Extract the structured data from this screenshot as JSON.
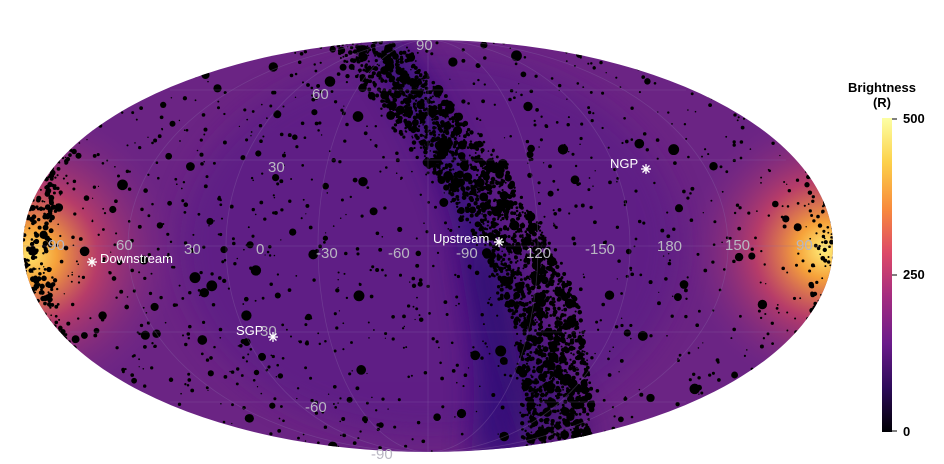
{
  "map": {
    "projection": "Mollweide (all-sky)",
    "latitude_labels": [
      "90",
      "60",
      "30",
      "-60",
      "-90"
    ],
    "longitude_labels": [
      "90",
      "60",
      "30",
      "0",
      "-30",
      "-60",
      "-90",
      "120",
      "-150",
      "180",
      "150",
      "90"
    ],
    "markers": [
      {
        "id": "downstream",
        "label": "Downstream"
      },
      {
        "id": "upstream",
        "label": "Upstream"
      },
      {
        "id": "ngp",
        "label": "NGP"
      },
      {
        "id": "sgp",
        "label": "SGP"
      }
    ],
    "extra_labels": [
      "-30",
      "30"
    ],
    "colors": {
      "background_mid": "#6a2585",
      "band_dark": "#3a1280",
      "edge_hot": "#f08a2c",
      "edge_bright": "#ffe86a",
      "stars": "#000000"
    }
  },
  "colorbar": {
    "title_line1": "Brightness",
    "title_line2": "(R)",
    "ticks": [
      "500",
      "250",
      "0"
    ],
    "range": [
      0,
      500
    ],
    "colormap": "inferno-like",
    "stops": [
      "#000004",
      "#2d0b59",
      "#6a1b8a",
      "#a42c80",
      "#dd4968",
      "#f88a3c",
      "#fcd14a",
      "#fcffa4"
    ]
  }
}
